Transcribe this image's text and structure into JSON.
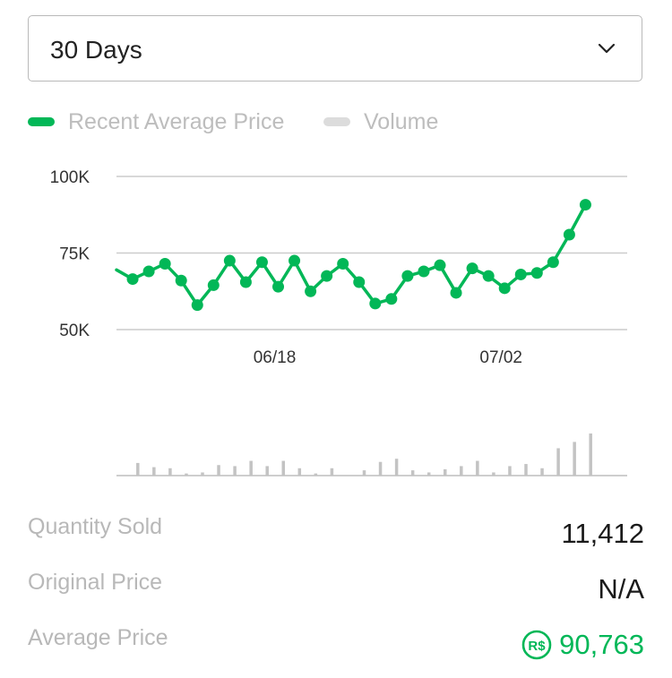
{
  "dropdown": {
    "selected": "30 Days"
  },
  "legend": {
    "price_label": "Recent Average Price",
    "volume_label": "Volume"
  },
  "colors": {
    "accent": "#02b757",
    "volume_bar": "#c3c3c3",
    "gridline": "#cccccc",
    "muted_text": "#b8b8b8"
  },
  "stats": {
    "quantity_sold_label": "Quantity Sold",
    "quantity_sold_value": "11,412",
    "original_price_label": "Original Price",
    "original_price_value": "N/A",
    "average_price_label": "Average Price",
    "average_price_value": "90,763",
    "currency_icon": "robux-icon"
  },
  "chart_data": [
    {
      "type": "line",
      "title": "",
      "xlabel": "",
      "ylabel": "",
      "series": [
        {
          "name": "Recent Average Price",
          "values": [
            69500,
            66500,
            69000,
            71500,
            66000,
            58000,
            64500,
            72500,
            65500,
            72000,
            64000,
            72500,
            62500,
            67500,
            71500,
            65500,
            58500,
            60000,
            67500,
            69000,
            71000,
            62000,
            70000,
            67500,
            63500,
            68000,
            68500,
            72000,
            81000,
            90763
          ]
        }
      ],
      "ylim": [
        50000,
        100000
      ],
      "yticks": [
        "50K",
        "75K",
        "100K"
      ],
      "xtick_labels": [
        {
          "index": 10,
          "label": "06/18"
        },
        {
          "index": 24,
          "label": "07/02"
        }
      ],
      "grid": true,
      "legend_position": "top-left"
    },
    {
      "type": "bar",
      "series": [
        {
          "name": "Volume",
          "values": [
            0,
            12,
            8,
            7,
            2,
            3,
            10,
            9,
            14,
            9,
            14,
            7,
            2,
            7,
            0,
            5,
            13,
            16,
            5,
            3,
            6,
            9,
            14,
            3,
            9,
            11,
            7,
            26,
            32,
            40
          ]
        }
      ],
      "relative_scale": true
    }
  ]
}
